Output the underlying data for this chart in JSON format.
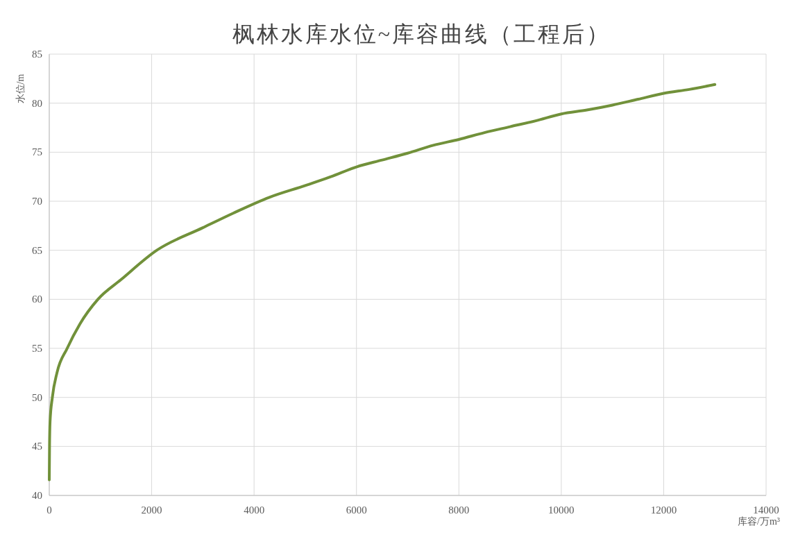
{
  "chart_data": {
    "type": "line",
    "title": "枫林水库水位~库容曲线（工程后）",
    "xlabel": "库容/万m³",
    "ylabel": "水位/m",
    "x": [
      0,
      5,
      15,
      60,
      150,
      350,
      600,
      950,
      1400,
      2100,
      3000,
      3600,
      4300,
      5000,
      5500,
      6000,
      6500,
      7000,
      7500,
      8000,
      8500,
      9000,
      9500,
      10000,
      10500,
      11000,
      11500,
      12000,
      12500,
      13000
    ],
    "series": [
      {
        "color": "#71913a",
        "values": [
          41.6,
          45,
          47.5,
          50,
          52.5,
          55,
          57.5,
          60,
          62,
          65,
          67.3,
          68.8,
          70.4,
          71.6,
          72.5,
          73.5,
          74.2,
          74.9,
          75.7,
          76.3,
          77.0,
          77.6,
          78.2,
          78.9,
          79.3,
          79.8,
          80.4,
          81.0,
          81.4,
          81.9
        ]
      }
    ],
    "xlim": [
      0,
      14000
    ],
    "xticks": [
      0,
      2000,
      4000,
      6000,
      8000,
      10000,
      12000,
      14000
    ],
    "ylim": [
      40,
      85
    ],
    "yticks": [
      40,
      45,
      50,
      55,
      60,
      65,
      70,
      75,
      80,
      85
    ],
    "grid": true,
    "marker": "none",
    "line_style": "solid"
  }
}
